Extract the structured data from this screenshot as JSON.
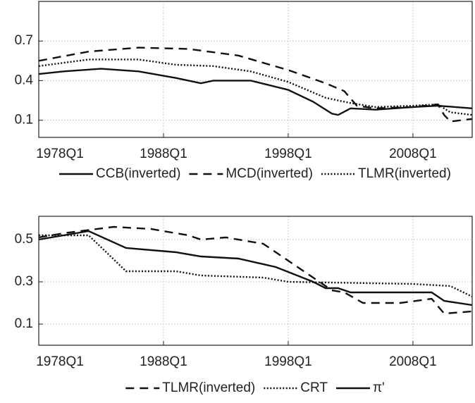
{
  "chart_data": [
    {
      "type": "line",
      "grid": true,
      "legend": "bottom",
      "xlim": [
        1978,
        2012.75
      ],
      "ylim": [
        -0.03,
        1.0
      ],
      "xticks": [
        {
          "value": 1978,
          "label": "1978Q1"
        },
        {
          "value": 1988,
          "label": "1988Q1"
        },
        {
          "value": 1998,
          "label": "1998Q1"
        },
        {
          "value": 2008,
          "label": "2008Q1"
        }
      ],
      "yticks": [
        0.1,
        0.4,
        0.7
      ],
      "series": [
        {
          "name": "CCB(inverted)",
          "color": "#111111",
          "style": "solid",
          "x": [
            1978,
            1980,
            1983,
            1986,
            1989,
            1991,
            1992,
            1995,
            1998,
            2000,
            2001.5,
            2002,
            2003,
            2005,
            2008,
            2010,
            2012.75
          ],
          "values": [
            0.45,
            0.47,
            0.49,
            0.47,
            0.42,
            0.38,
            0.4,
            0.4,
            0.33,
            0.24,
            0.15,
            0.14,
            0.19,
            0.18,
            0.2,
            0.21,
            0.19
          ]
        },
        {
          "name": "MCD(inverted)",
          "color": "#111111",
          "style": "dashed",
          "x": [
            1978,
            1982,
            1986,
            1990,
            1994,
            1998,
            2001,
            2002.5,
            2003.5,
            2005,
            2008,
            2010,
            2010.5,
            2011,
            2012.75
          ],
          "values": [
            0.55,
            0.62,
            0.65,
            0.64,
            0.59,
            0.48,
            0.38,
            0.32,
            0.21,
            0.19,
            0.2,
            0.22,
            0.14,
            0.09,
            0.11
          ]
        },
        {
          "name": "TLMR(inverted)",
          "color": "#111111",
          "style": "dotted",
          "x": [
            1978,
            1982,
            1986,
            1989,
            1992,
            1995,
            1998,
            2001,
            2003,
            2005,
            2008,
            2010,
            2011,
            2012.75
          ],
          "values": [
            0.51,
            0.56,
            0.56,
            0.52,
            0.51,
            0.47,
            0.39,
            0.27,
            0.23,
            0.2,
            0.21,
            0.22,
            0.16,
            0.14
          ]
        }
      ]
    },
    {
      "type": "line",
      "grid": true,
      "legend": "bottom",
      "xlim": [
        1978,
        2012.75
      ],
      "ylim": [
        0,
        0.61
      ],
      "xticks": [
        {
          "value": 1978,
          "label": "1978Q1"
        },
        {
          "value": 1988,
          "label": "1988Q1"
        },
        {
          "value": 1998,
          "label": "1998Q1"
        },
        {
          "value": 2008,
          "label": "2008Q1"
        }
      ],
      "yticks": [
        0.1,
        0.3,
        0.5
      ],
      "series": [
        {
          "name": "TLMR(inverted)",
          "color": "#111111",
          "style": "dashed",
          "x": [
            1978,
            1980,
            1984,
            1987,
            1990,
            1991,
            1993,
            1996,
            1998,
            2000,
            2001.5,
            2002.5,
            2004,
            2007,
            2009.5,
            2010.5,
            2012.75
          ],
          "values": [
            0.51,
            0.53,
            0.56,
            0.55,
            0.52,
            0.5,
            0.51,
            0.48,
            0.4,
            0.32,
            0.26,
            0.25,
            0.2,
            0.2,
            0.22,
            0.15,
            0.16
          ]
        },
        {
          "name": "CRT",
          "color": "#111111",
          "style": "dotted",
          "x": [
            1978,
            1982,
            1985,
            1989,
            1991,
            1996,
            1998,
            2008,
            2011,
            2012.75
          ],
          "values": [
            0.52,
            0.52,
            0.35,
            0.35,
            0.33,
            0.32,
            0.3,
            0.29,
            0.28,
            0.23
          ]
        },
        {
          "name": "π'",
          "color": "#111111",
          "style": "solid",
          "x": [
            1978,
            1982,
            1985,
            1989,
            1991,
            1994,
            1997,
            2000,
            2001,
            2002,
            2003,
            2007,
            2009.5,
            2010.5,
            2012.75
          ],
          "values": [
            0.5,
            0.54,
            0.46,
            0.44,
            0.42,
            0.41,
            0.37,
            0.3,
            0.27,
            0.27,
            0.25,
            0.25,
            0.25,
            0.21,
            0.19
          ]
        }
      ]
    }
  ]
}
